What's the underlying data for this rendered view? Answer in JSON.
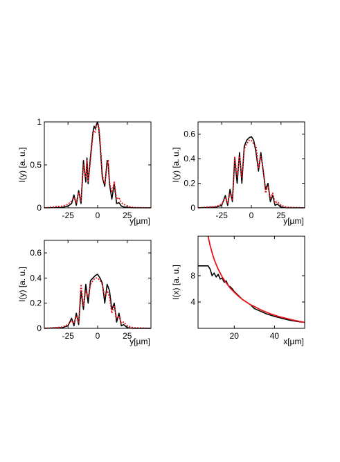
{
  "colors": {
    "measured": "#000000",
    "model": "#e8141b",
    "axis": "#000000"
  },
  "chart_data": [
    {
      "type": "line",
      "xlabel": "y[µm]",
      "ylabel": "I(y) [a. u.]",
      "xlim": [
        -45,
        45
      ],
      "ylim": [
        0,
        1
      ],
      "xticks": [
        -25,
        0,
        25
      ],
      "xtick_labels": [
        "-25",
        "0",
        "25"
      ],
      "yticks": [
        0,
        0.5,
        1
      ],
      "ytick_labels": [
        "0",
        "0.5",
        "1"
      ],
      "series": [
        {
          "style": "solid-black",
          "x": [
            -45,
            -30,
            -25,
            -22,
            -20,
            -18,
            -16,
            -14,
            -12,
            -10,
            -9,
            -8,
            -6,
            -4,
            -3,
            -2,
            -1,
            0,
            1,
            2,
            3,
            4,
            5,
            6,
            8,
            9,
            10,
            12,
            14,
            16,
            18,
            20,
            22,
            25,
            30,
            45
          ],
          "y": [
            0,
            0.005,
            0.02,
            0.05,
            0.15,
            0.03,
            0.2,
            0.05,
            0.55,
            0.3,
            0.58,
            0.28,
            0.6,
            0.88,
            0.95,
            0.92,
            0.97,
            1.0,
            0.92,
            0.75,
            0.55,
            0.35,
            0.3,
            0.25,
            0.55,
            0.5,
            0.28,
            0.1,
            0.28,
            0.05,
            0.06,
            0.02,
            0.01,
            0.005,
            0.0,
            0
          ]
        },
        {
          "style": "dotted-red",
          "x": [
            -45,
            -30,
            -25,
            -22,
            -20,
            -18,
            -16,
            -14,
            -12,
            -10,
            -9,
            -8,
            -6,
            -4,
            -3,
            -2,
            -1,
            0,
            1,
            2,
            3,
            4,
            5,
            6,
            8,
            9,
            10,
            12,
            14,
            16,
            18,
            20,
            22,
            25,
            30,
            45
          ],
          "y": [
            0,
            0.02,
            0.04,
            0.08,
            0.12,
            0.06,
            0.18,
            0.08,
            0.5,
            0.35,
            0.55,
            0.3,
            0.55,
            0.85,
            0.9,
            0.88,
            0.95,
            0.98,
            0.95,
            0.8,
            0.6,
            0.4,
            0.3,
            0.28,
            0.5,
            0.55,
            0.3,
            0.18,
            0.3,
            0.1,
            0.12,
            0.06,
            0.04,
            0.02,
            0.005,
            0
          ]
        }
      ]
    },
    {
      "type": "line",
      "xlabel": "y[µm]",
      "ylabel": "I(y) [a. u.]",
      "xlim": [
        -45,
        45
      ],
      "ylim": [
        0,
        0.7
      ],
      "xticks": [
        -25,
        0,
        25
      ],
      "xtick_labels": [
        "-25",
        "0",
        "25"
      ],
      "yticks": [
        0,
        0.2,
        0.4,
        0.6
      ],
      "ytick_labels": [
        "0",
        "0.2",
        "0.4",
        "0.6"
      ],
      "series": [
        {
          "style": "solid-black",
          "x": [
            -45,
            -30,
            -25,
            -22,
            -20,
            -18,
            -16,
            -14,
            -12,
            -10,
            -8,
            -6,
            -4,
            -2,
            0,
            2,
            4,
            6,
            8,
            10,
            12,
            14,
            16,
            18,
            20,
            22,
            25,
            30,
            45
          ],
          "y": [
            0,
            0.005,
            0.02,
            0.1,
            0.02,
            0.15,
            0.05,
            0.4,
            0.2,
            0.45,
            0.2,
            0.5,
            0.55,
            0.57,
            0.58,
            0.55,
            0.45,
            0.3,
            0.45,
            0.3,
            0.15,
            0.2,
            0.05,
            0.1,
            0.02,
            0.03,
            0.005,
            0,
            0
          ]
        },
        {
          "style": "dotted-red",
          "x": [
            -45,
            -30,
            -25,
            -22,
            -20,
            -18,
            -16,
            -14,
            -12,
            -10,
            -8,
            -6,
            -4,
            -2,
            0,
            2,
            4,
            6,
            8,
            10,
            12,
            14,
            16,
            18,
            20,
            22,
            25,
            30,
            45
          ],
          "y": [
            0,
            0.01,
            0.03,
            0.08,
            0.04,
            0.12,
            0.06,
            0.42,
            0.25,
            0.42,
            0.25,
            0.48,
            0.52,
            0.55,
            0.55,
            0.52,
            0.5,
            0.32,
            0.42,
            0.32,
            0.12,
            0.18,
            0.08,
            0.12,
            0.04,
            0.05,
            0.02,
            0.005,
            0
          ]
        }
      ]
    },
    {
      "type": "line",
      "xlabel": "y[µm]",
      "ylabel": "I(y) [a. u.]",
      "xlim": [
        -45,
        45
      ],
      "ylim": [
        0,
        0.7
      ],
      "xticks": [
        -25,
        0,
        25
      ],
      "xtick_labels": [
        "-25",
        "0",
        "25"
      ],
      "yticks": [
        0,
        0.2,
        0.4,
        0.6
      ],
      "ytick_labels": [
        "0",
        "0.2",
        "0.4",
        "0.6"
      ],
      "series": [
        {
          "style": "solid-black",
          "x": [
            -45,
            -30,
            -25,
            -22,
            -20,
            -18,
            -16,
            -14,
            -12,
            -10,
            -8,
            -6,
            -4,
            -2,
            0,
            2,
            4,
            6,
            8,
            10,
            12,
            14,
            16,
            18,
            20,
            22,
            25,
            30,
            45
          ],
          "y": [
            0,
            0.005,
            0.02,
            0.08,
            0.02,
            0.12,
            0.03,
            0.3,
            0.15,
            0.35,
            0.2,
            0.38,
            0.4,
            0.42,
            0.43,
            0.4,
            0.36,
            0.2,
            0.35,
            0.3,
            0.15,
            0.2,
            0.05,
            0.12,
            0.02,
            0.03,
            0.005,
            0,
            0
          ]
        },
        {
          "style": "dotted-red",
          "x": [
            -45,
            -30,
            -25,
            -22,
            -20,
            -18,
            -16,
            -14,
            -12,
            -10,
            -8,
            -6,
            -4,
            -2,
            0,
            2,
            4,
            6,
            8,
            10,
            12,
            14,
            16,
            18,
            20,
            22,
            25,
            30,
            45
          ],
          "y": [
            0,
            0.01,
            0.03,
            0.06,
            0.04,
            0.1,
            0.05,
            0.35,
            0.18,
            0.3,
            0.25,
            0.35,
            0.38,
            0.4,
            0.4,
            0.38,
            0.35,
            0.25,
            0.3,
            0.25,
            0.12,
            0.18,
            0.08,
            0.1,
            0.04,
            0.05,
            0.02,
            0.005,
            0
          ]
        }
      ]
    },
    {
      "type": "line",
      "xlabel": "x[µm]",
      "ylabel": "I(x) [a. u.]",
      "xlim": [
        2,
        55
      ],
      "ylim": [
        0,
        14
      ],
      "xticks": [
        20,
        40
      ],
      "xtick_labels": [
        "20",
        "40"
      ],
      "yticks": [
        4,
        8
      ],
      "ytick_labels": [
        "4",
        "8"
      ],
      "series": [
        {
          "style": "solid-black",
          "x": [
            2,
            5,
            7,
            8,
            9,
            10,
            11,
            12,
            13,
            14,
            15,
            16,
            17,
            18,
            19,
            20,
            22,
            24,
            26,
            28,
            30,
            33,
            36,
            40,
            44,
            48,
            52,
            55
          ],
          "y": [
            9.5,
            9.5,
            9.5,
            9.0,
            8.0,
            8.4,
            7.8,
            8.2,
            7.5,
            7.6,
            7.0,
            7.2,
            6.5,
            6.3,
            6.0,
            5.6,
            5.0,
            4.4,
            4.0,
            3.6,
            3.0,
            2.6,
            2.2,
            1.8,
            1.5,
            1.2,
            1.0,
            0.9
          ]
        },
        {
          "style": "solid-red",
          "x": [
            7,
            8,
            9,
            10,
            11,
            12,
            13,
            14,
            16,
            18,
            20,
            22,
            24,
            26,
            28,
            30,
            34,
            38,
            42,
            46,
            50,
            55
          ],
          "y": [
            14,
            12.6,
            11.5,
            10.5,
            9.7,
            9.0,
            8.4,
            7.8,
            6.9,
            6.1,
            5.5,
            4.9,
            4.4,
            4.0,
            3.6,
            3.3,
            2.7,
            2.2,
            1.8,
            1.5,
            1.2,
            0.9
          ]
        }
      ]
    }
  ]
}
